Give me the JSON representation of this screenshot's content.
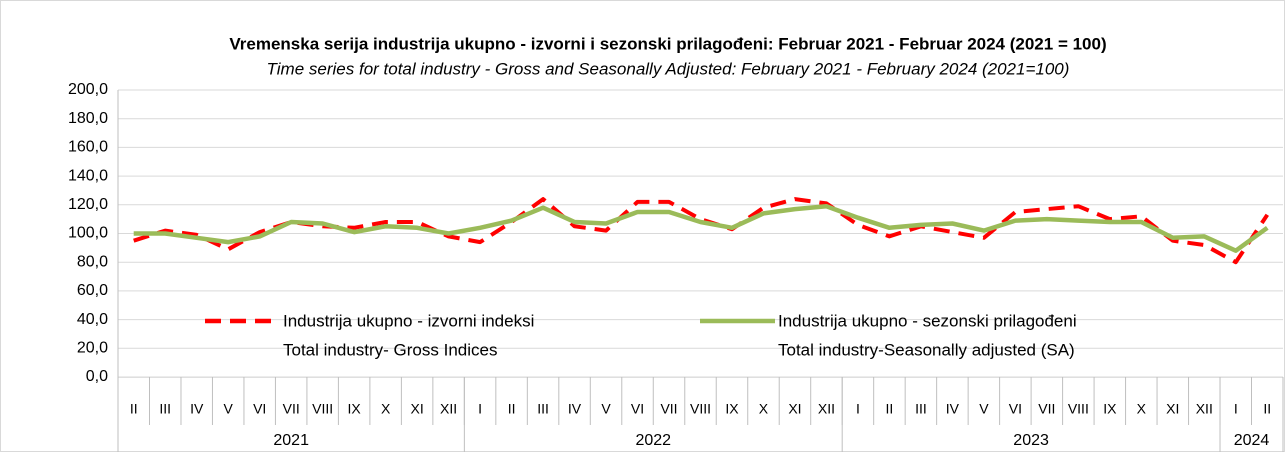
{
  "chart_data": {
    "type": "line",
    "title": "Vremenska serija industrija ukupno - izvorni i sezonski prilagođeni: Februar 2021 - Februar 2024 (2021 = 100)",
    "subtitle": "Time series for total industry - Gross and Seasonally Adjusted: February 2021 - February 2024 (2021=100)",
    "categories": [
      "II",
      "III",
      "IV",
      "V",
      "VI",
      "VII",
      "VIII",
      "IX",
      "X",
      "XI",
      "XII",
      "I",
      "II",
      "III",
      "IV",
      "V",
      "VI",
      "VII",
      "VIII",
      "IX",
      "X",
      "XI",
      "XII",
      "I",
      "II",
      "III",
      "IV",
      "V",
      "VI",
      "VII",
      "VIII",
      "IX",
      "X",
      "XI",
      "XII",
      "I",
      "II"
    ],
    "year_groups": [
      {
        "label": "2021",
        "span": 11
      },
      {
        "label": "2022",
        "span": 12
      },
      {
        "label": "2023",
        "span": 12
      },
      {
        "label": "2024",
        "span": 2
      }
    ],
    "series": [
      {
        "name": "Industrija ukupno - izvorni indeksi",
        "name_en": "Total industry- Gross Indices",
        "color": "#ff0000",
        "dashed": true,
        "values": [
          95,
          102,
          99,
          89,
          101,
          108,
          105,
          104,
          108,
          108,
          98,
          94,
          108,
          124,
          105,
          102,
          122,
          122,
          110,
          103,
          118,
          124,
          121,
          106,
          98,
          105,
          101,
          97,
          115,
          117,
          119,
          110,
          112,
          95,
          92,
          80,
          113
        ]
      },
      {
        "name": "Industrija ukupno - sezonski prilagođeni",
        "name_en": "Total industry-Seasonally adjusted (SA)",
        "color": "#9bbb59",
        "dashed": false,
        "values": [
          100,
          100,
          97,
          94,
          98,
          108,
          107,
          101,
          105,
          104,
          100,
          104,
          109,
          118,
          108,
          107,
          115,
          115,
          108,
          104,
          114,
          117,
          119,
          111,
          104,
          106,
          107,
          102,
          109,
          110,
          109,
          108,
          108,
          97,
          98,
          88,
          104
        ]
      }
    ],
    "ylim": [
      0,
      200
    ],
    "yticks": [
      {
        "value": 0,
        "label": "0,0"
      },
      {
        "value": 20,
        "label": "20,0"
      },
      {
        "value": 40,
        "label": "40,0"
      },
      {
        "value": 60,
        "label": "60,0"
      },
      {
        "value": 80,
        "label": "80,0"
      },
      {
        "value": 100,
        "label": "100,0"
      },
      {
        "value": 120,
        "label": "120,0"
      },
      {
        "value": 140,
        "label": "140,0"
      },
      {
        "value": 160,
        "label": "160,0"
      },
      {
        "value": 180,
        "label": "180,0"
      },
      {
        "value": 200,
        "label": "200,0"
      }
    ],
    "grid": true
  }
}
